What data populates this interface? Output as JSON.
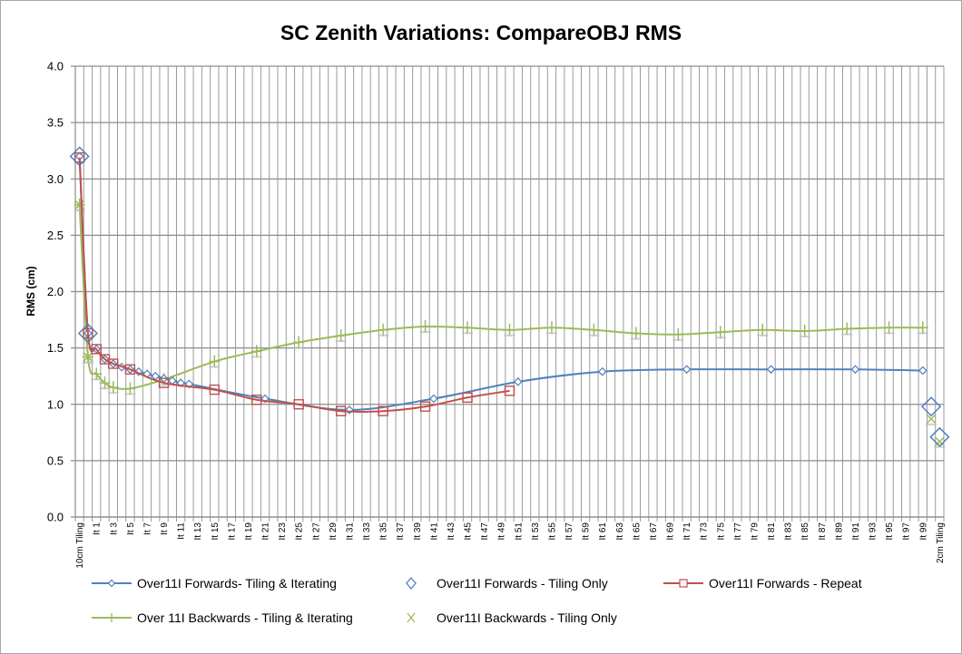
{
  "chart_data": {
    "type": "line",
    "title": "SC Zenith Variations: CompareOBJ RMS",
    "xlabel": "",
    "ylabel": "RMS (cm)",
    "ylim": [
      0,
      4
    ],
    "yticks": [
      "0.0",
      "0.5",
      "1.0",
      "1.5",
      "2.0",
      "2.5",
      "3.0",
      "3.5",
      "4.0"
    ],
    "ytick_values": [
      0,
      0.5,
      1.0,
      1.5,
      2.0,
      2.5,
      3.0,
      3.5,
      4.0
    ],
    "grid": true,
    "legend_position": "bottom",
    "category_count": 103,
    "category_labels": {
      "0": "10cm Tiling",
      "2": "It 1",
      "4": "It 3",
      "6": "It 5",
      "8": "It 7",
      "10": "It 9",
      "12": "It 11",
      "14": "It 13",
      "16": "It 15",
      "18": "It 17",
      "20": "It 19",
      "22": "It 21",
      "24": "It 23",
      "26": "It 25",
      "28": "It 27",
      "30": "It 29",
      "32": "It 31",
      "34": "It 33",
      "36": "It 35",
      "38": "It 37",
      "40": "It 39",
      "42": "It 41",
      "44": "It 43",
      "46": "It 45",
      "48": "It 47",
      "50": "It 49",
      "52": "It 51",
      "54": "It 53",
      "56": "It 55",
      "58": "It 57",
      "60": "It 59",
      "62": "It 61",
      "64": "It 63",
      "66": "It 65",
      "68": "It 67",
      "70": "It 69",
      "72": "It 71",
      "74": "It 73",
      "76": "It 75",
      "78": "It 77",
      "80": "It 79",
      "82": "It 81",
      "84": "It 83",
      "86": "It 85",
      "88": "It 87",
      "90": "It 89",
      "92": "It 91",
      "94": "It 93",
      "96": "It 95",
      "98": "It 97",
      "100": "It 99",
      "102": "2cm Tiling"
    },
    "series": [
      {
        "name": "Over11I Forwards- Tiling & Iterating",
        "color": "#4F81BD",
        "marker": "diamond-small",
        "line": true,
        "points": [
          [
            0,
            3.2
          ],
          [
            1,
            1.63
          ],
          [
            2,
            1.49
          ],
          [
            3,
            1.4
          ],
          [
            4,
            1.36
          ],
          [
            5,
            1.33
          ],
          [
            6,
            1.31
          ],
          [
            7,
            1.29
          ],
          [
            8,
            1.27
          ],
          [
            9,
            1.25
          ],
          [
            10,
            1.23
          ],
          [
            11,
            1.21
          ],
          [
            12,
            1.19
          ],
          [
            13,
            1.18
          ],
          [
            22,
            1.05
          ],
          [
            32,
            0.95
          ],
          [
            42,
            1.05
          ],
          [
            52,
            1.2
          ],
          [
            62,
            1.29
          ],
          [
            72,
            1.31
          ],
          [
            82,
            1.31
          ],
          [
            92,
            1.31
          ],
          [
            100,
            1.3
          ]
        ]
      },
      {
        "name": "Over11I Forwards - Tiling Only",
        "color": "#4F81BD",
        "marker": "diamond-large",
        "line": false,
        "points": [
          [
            0,
            3.2
          ],
          [
            1,
            1.63
          ],
          [
            101,
            0.98
          ],
          [
            102,
            0.71
          ]
        ]
      },
      {
        "name": "Over11I Forwards - Repeat",
        "color": "#C0504D",
        "marker": "square",
        "line": true,
        "points": [
          [
            0,
            3.19
          ],
          [
            1,
            1.63
          ],
          [
            2,
            1.49
          ],
          [
            3,
            1.4
          ],
          [
            4,
            1.36
          ],
          [
            6,
            1.31
          ],
          [
            10,
            1.19
          ],
          [
            16,
            1.13
          ],
          [
            21,
            1.04
          ],
          [
            26,
            1.0
          ],
          [
            31,
            0.94
          ],
          [
            36,
            0.94
          ],
          [
            41,
            0.98
          ],
          [
            46,
            1.06
          ],
          [
            51,
            1.12
          ]
        ]
      },
      {
        "name": "Over 11I Backwards - Tiling & Iterating",
        "color": "#9BBB59",
        "marker": "plus",
        "line": true,
        "points": [
          [
            0,
            2.77
          ],
          [
            1,
            1.42
          ],
          [
            2,
            1.27
          ],
          [
            3,
            1.19
          ],
          [
            4,
            1.15
          ],
          [
            6,
            1.14
          ],
          [
            10,
            1.22
          ],
          [
            16,
            1.38
          ],
          [
            21,
            1.47
          ],
          [
            26,
            1.55
          ],
          [
            31,
            1.61
          ],
          [
            36,
            1.66
          ],
          [
            41,
            1.69
          ],
          [
            46,
            1.68
          ],
          [
            51,
            1.66
          ],
          [
            56,
            1.68
          ],
          [
            61,
            1.66
          ],
          [
            66,
            1.63
          ],
          [
            71,
            1.62
          ],
          [
            76,
            1.64
          ],
          [
            81,
            1.66
          ],
          [
            86,
            1.65
          ],
          [
            91,
            1.67
          ],
          [
            96,
            1.68
          ],
          [
            100,
            1.68
          ]
        ]
      },
      {
        "name": "Over11I Backwards - Tiling Only",
        "color": "#9BBB59",
        "marker": "x",
        "line": false,
        "points": [
          [
            0,
            2.77
          ],
          [
            1,
            1.42
          ],
          [
            101,
            0.87
          ],
          [
            102,
            0.67
          ]
        ]
      }
    ]
  }
}
